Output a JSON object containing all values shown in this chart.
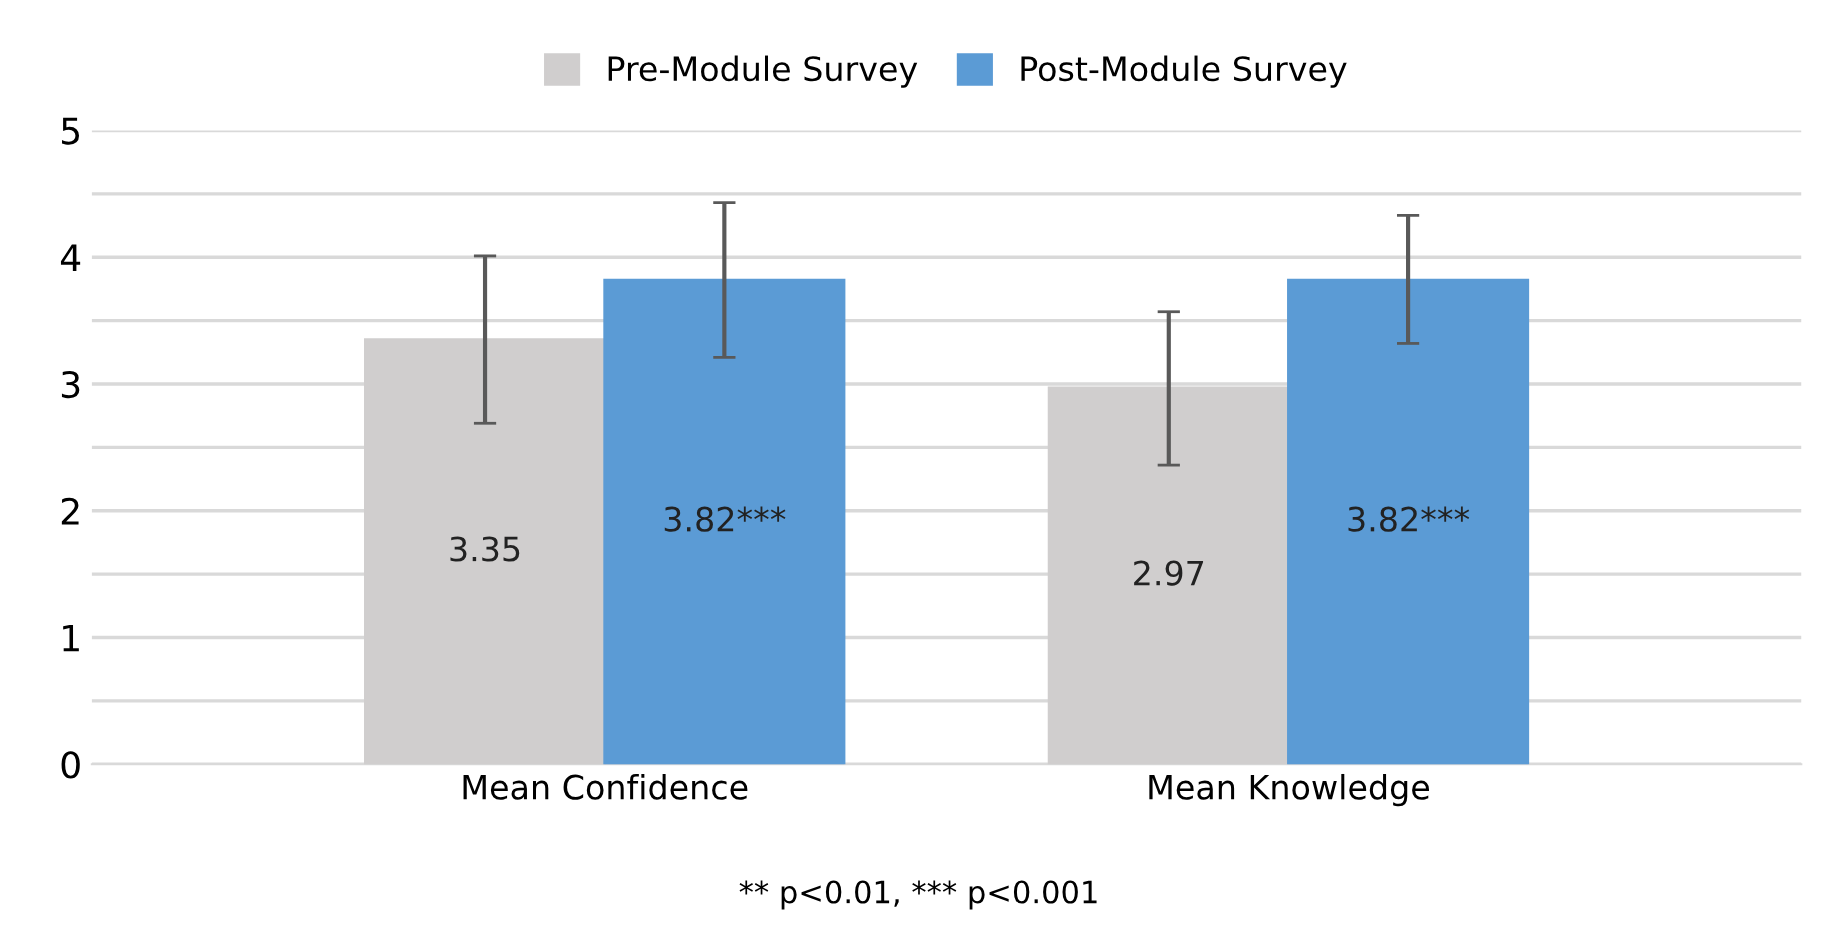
{
  "chart_data": {
    "type": "bar",
    "categories": [
      "Mean Confidence",
      "Mean Knowledge"
    ],
    "series": [
      {
        "name": "Pre-Module Survey",
        "color": "#d0cece",
        "values": [
          3.35,
          2.97
        ],
        "errors": [
          [
            2.69,
            4.01
          ],
          [
            2.36,
            3.57
          ]
        ],
        "value_labels": [
          "3.35",
          "2.97"
        ]
      },
      {
        "name": "Post-Module Survey",
        "color": "#5b9bd5",
        "values": [
          3.82,
          3.82
        ],
        "errors": [
          [
            3.21,
            4.43
          ],
          [
            3.32,
            4.33
          ]
        ],
        "value_labels": [
          "3.82***",
          "3.82***"
        ]
      }
    ],
    "ylim": [
      0,
      5
    ],
    "yticks": [
      0,
      {
        "value": 0.5,
        "label": null
      },
      1,
      {
        "value": 1.5,
        "label": null
      },
      2,
      {
        "value": 2.5,
        "label": null
      },
      3,
      {
        "value": 3.5,
        "label": null
      },
      4,
      {
        "value": 4.5,
        "label": null
      },
      5
    ],
    "grid": "y",
    "legend": "top",
    "annotations": [
      "** p<0.01, *** p<0.001"
    ]
  }
}
